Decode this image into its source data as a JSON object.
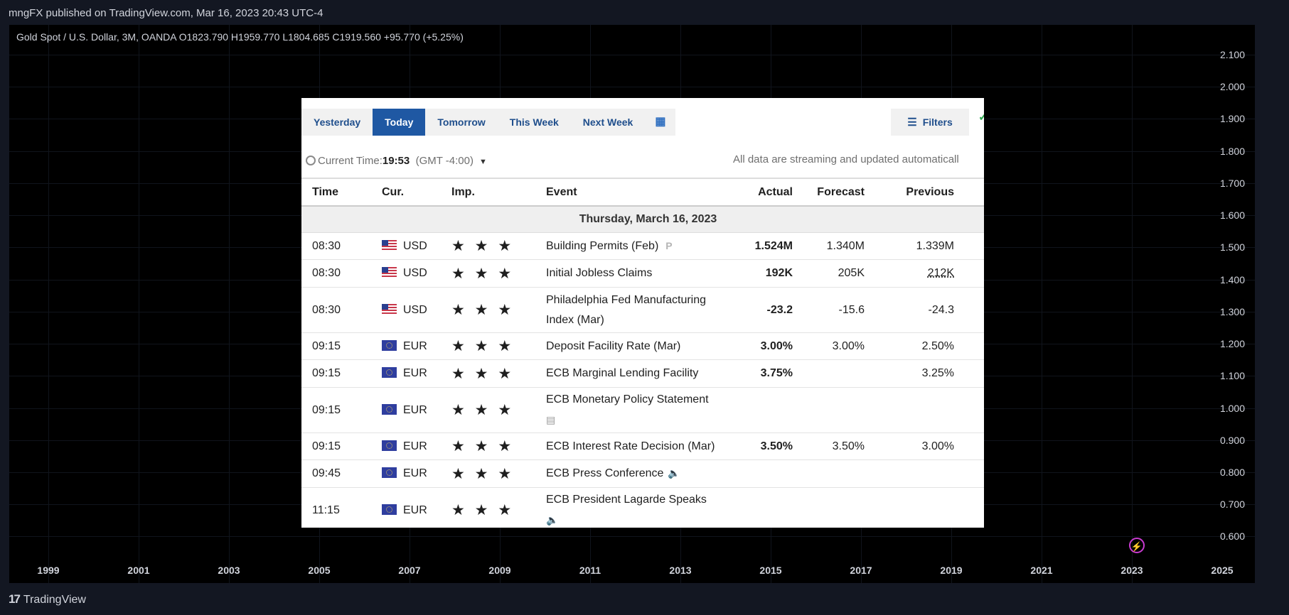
{
  "header": {
    "publisher": "mngFX published on TradingView.com, Mar 16, 2023 20:43 UTC-4"
  },
  "symbol": {
    "line": "Gold Spot / U.S. Dollar, 3M, OANDA  O1823.790  H1959.770  L1804.685  C1919.560  +95.770 (+5.25%)"
  },
  "y_axis": [
    "2.100",
    "2.000",
    "1.900",
    "1.800",
    "1.700",
    "1.600",
    "1.500",
    "1.400",
    "1.300",
    "1.200",
    "1.100",
    "1.000",
    "0.900",
    "0.800",
    "0.700",
    "0.600"
  ],
  "x_axis": [
    "1999",
    "2001",
    "2003",
    "2005",
    "2007",
    "2009",
    "2011",
    "2013",
    "2015",
    "2017",
    "2019",
    "2021",
    "2023",
    "2025"
  ],
  "footer": {
    "brand": "TradingView"
  },
  "calendar": {
    "tabs": [
      "Yesterday",
      "Today",
      "Tomorrow",
      "This Week",
      "Next Week"
    ],
    "active_tab": "Today",
    "filters_label": "Filters",
    "current_time_label": "Current Time:",
    "current_time": "19:53",
    "timezone": "(GMT -4:00)",
    "streaming_note": "All data are streaming and updated automaticall",
    "columns": {
      "time": "Time",
      "cur": "Cur.",
      "imp": "Imp.",
      "event": "Event",
      "actual": "Actual",
      "forecast": "Forecast",
      "previous": "Previous"
    },
    "day": "Thursday, March 16, 2023",
    "stars": "★ ★ ★",
    "rows": [
      {
        "time": "08:30",
        "cur": "USD",
        "event": "Building Permits (Feb)",
        "actual": "1.524M",
        "forecast": "1.340M",
        "previous": "1.339M"
      },
      {
        "time": "08:30",
        "cur": "USD",
        "event": "Initial Jobless Claims",
        "actual": "192K",
        "forecast": "205K",
        "previous": "212K"
      },
      {
        "time": "08:30",
        "cur": "USD",
        "event": "Philadelphia Fed Manufacturing Index (Mar)",
        "actual": "-23.2",
        "forecast": "-15.6",
        "previous": "-24.3"
      },
      {
        "time": "09:15",
        "cur": "EUR",
        "event": "Deposit Facility Rate (Mar)",
        "actual": "3.00%",
        "forecast": "3.00%",
        "previous": "2.50%"
      },
      {
        "time": "09:15",
        "cur": "EUR",
        "event": "ECB Marginal Lending Facility",
        "actual": "3.75%",
        "forecast": "",
        "previous": "3.25%"
      },
      {
        "time": "09:15",
        "cur": "EUR",
        "event": "ECB Monetary Policy Statement",
        "actual": "",
        "forecast": "",
        "previous": ""
      },
      {
        "time": "09:15",
        "cur": "EUR",
        "event": "ECB Interest Rate Decision (Mar)",
        "actual": "3.50%",
        "forecast": "3.50%",
        "previous": "3.00%"
      },
      {
        "time": "09:45",
        "cur": "EUR",
        "event": "ECB Press Conference",
        "actual": "",
        "forecast": "",
        "previous": ""
      },
      {
        "time": "11:15",
        "cur": "EUR",
        "event": "ECB President Lagarde Speaks",
        "actual": "",
        "forecast": "",
        "previous": ""
      }
    ]
  },
  "colors": {
    "positive": "#2c9b2c",
    "negative": "#d41f1f",
    "active_tab": "#1f58a3"
  }
}
